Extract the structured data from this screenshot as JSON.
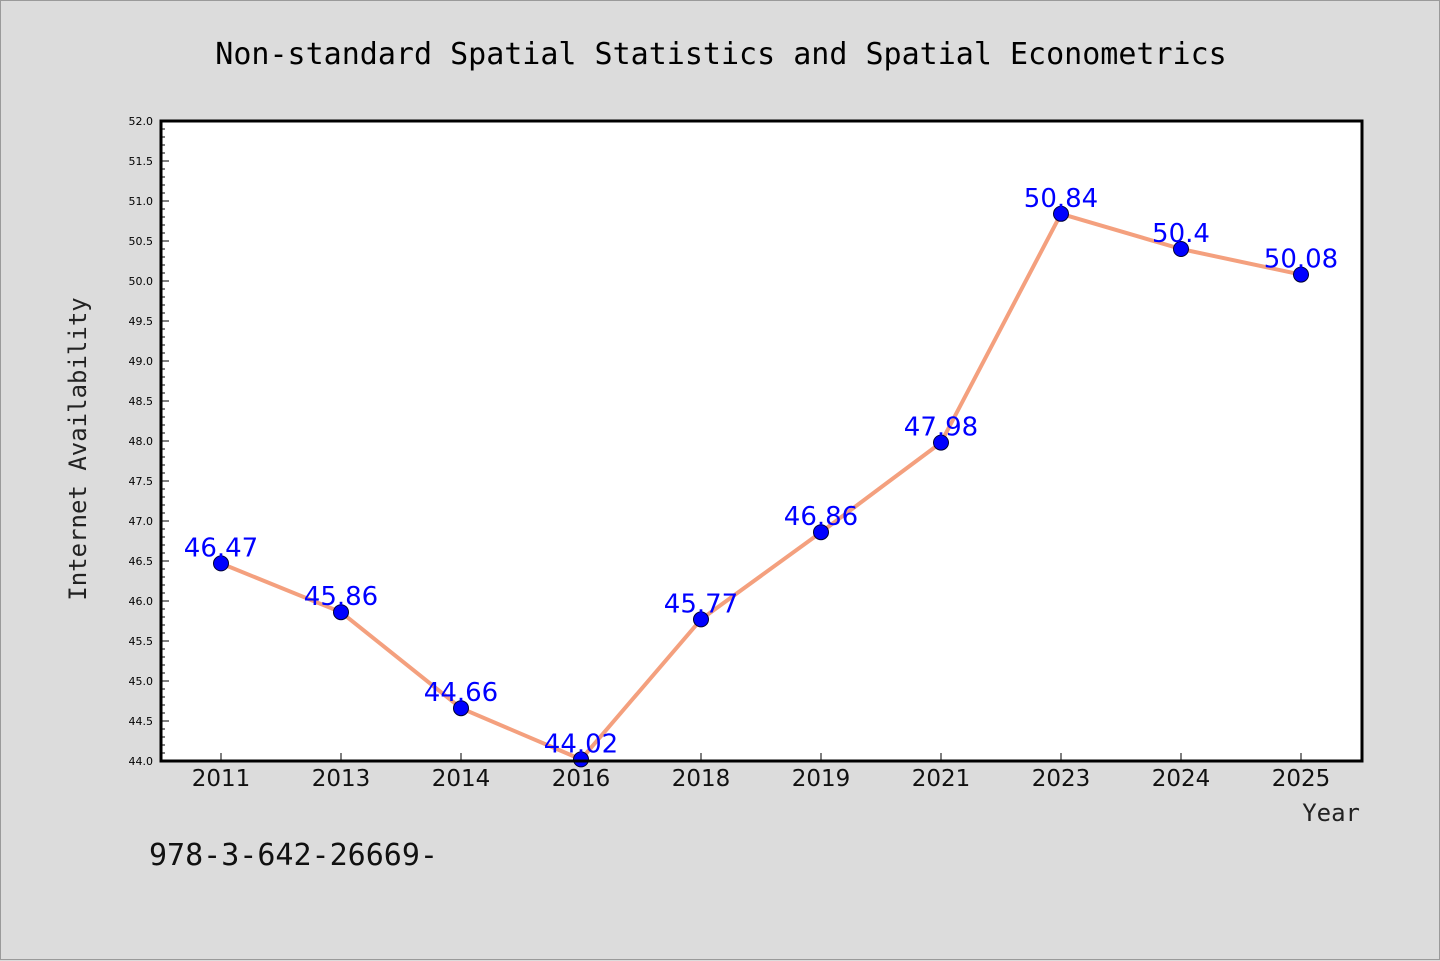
{
  "chart_data": {
    "type": "line",
    "title": "Non-standard Spatial Statistics and Spatial Econometrics",
    "xlabel": "Year",
    "ylabel": "Internet Availability",
    "categories": [
      "2011",
      "2013",
      "2014",
      "2016",
      "2018",
      "2019",
      "2021",
      "2023",
      "2024",
      "2025"
    ],
    "series": [
      {
        "values": [
          46.47,
          45.86,
          44.66,
          44.02,
          45.77,
          46.86,
          47.98,
          50.84,
          50.4,
          50.08
        ],
        "line_color": "#f4a07e",
        "marker_color": "#0000ff"
      }
    ],
    "data_labels": [
      "46.47",
      "45.86",
      "44.66",
      "44.02",
      "45.77",
      "46.86",
      "47.98",
      "50.84",
      "50.4",
      "50.08"
    ],
    "ylim": [
      44.0,
      52.0
    ],
    "yticks": [
      "44.0",
      "44.5",
      "45.0",
      "45.5",
      "46.0",
      "46.5",
      "47.0",
      "47.5",
      "48.0",
      "48.5",
      "49.0",
      "49.5",
      "50.0",
      "50.5",
      "51.0",
      "51.5",
      "52.0"
    ],
    "grid": false,
    "legend": "none"
  },
  "footnote": "978-3-642-26669-",
  "colors": {
    "background": "#dcdcdc",
    "plot_area": "#ffffff",
    "line": "#f4a07e",
    "marker": "#0000ff",
    "data_label": "#0000ff"
  }
}
